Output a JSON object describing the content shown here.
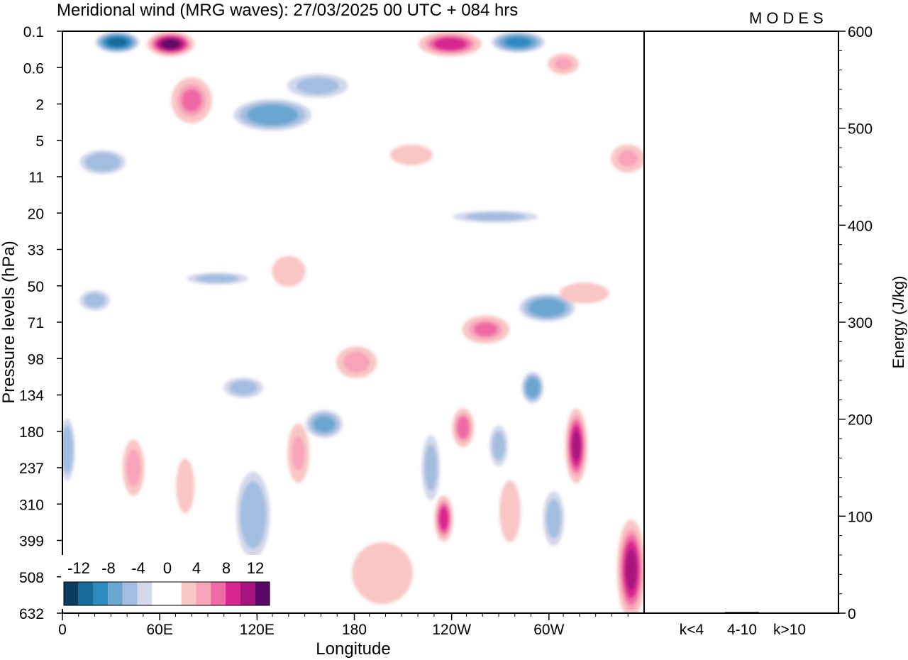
{
  "title": "Meridional wind (MRG waves):  27/03/2025  00 UTC  + 084 hrs",
  "logo": "MODES",
  "colors": {
    "neg": [
      "#0b3d5c",
      "#156c9a",
      "#2e8bbf",
      "#6aa6cf",
      "#a3bde0",
      "#d4d8ea"
    ],
    "pos": [
      "#f9c6c6",
      "#f7a3b8",
      "#ef6ba4",
      "#d8258f",
      "#a8137d",
      "#5a0865"
    ],
    "zero": "#ffffff"
  },
  "chart_data": [
    {
      "type": "heatmap",
      "panel": "main",
      "xlabel": "Longitude",
      "ylabel": "Pressure levels (hPa)",
      "x_ticks": [
        "0",
        "60E",
        "120E",
        "180",
        "120W",
        "60W"
      ],
      "x_range_deg": [
        0,
        360
      ],
      "y_ticks": [
        "0.1",
        "0.6",
        "2",
        "5",
        "11",
        "20",
        "33",
        "50",
        "71",
        "98",
        "134",
        "180",
        "237",
        "310",
        "399",
        "508",
        "632"
      ],
      "colorbar": {
        "labels": [
          "-12",
          "-8",
          "-4",
          "0",
          "4",
          "8",
          "12"
        ],
        "bins": [
          -14,
          -12,
          -10,
          -8,
          -6,
          -4,
          -2,
          2,
          4,
          6,
          8,
          10,
          12,
          14
        ]
      },
      "features": [
        {
          "lon": 34,
          "lev": 0.3,
          "v": -10,
          "w": 28,
          "h": 0.6
        },
        {
          "lon": 67,
          "lev": 0.35,
          "v": 14,
          "w": 30,
          "h": 0.7
        },
        {
          "lon": 80,
          "lev": 1.9,
          "v": 8,
          "w": 26,
          "h": 1.3
        },
        {
          "lon": 130,
          "lev": 2.3,
          "v": -7,
          "w": 50,
          "h": 0.9
        },
        {
          "lon": 240,
          "lev": 0.35,
          "v": 11,
          "w": 40,
          "h": 0.7
        },
        {
          "lon": 282,
          "lev": 0.3,
          "v": -8,
          "w": 34,
          "h": 0.6
        },
        {
          "lon": 310,
          "lev": 0.9,
          "v": 6,
          "w": 20,
          "h": 0.6
        },
        {
          "lon": 350,
          "lev": 3.5,
          "v": 6,
          "w": 22,
          "h": 0.8
        },
        {
          "lon": 25,
          "lev": 3.6,
          "v": -5,
          "w": 30,
          "h": 0.7
        },
        {
          "lon": 216,
          "lev": 3.4,
          "v": 4,
          "w": 28,
          "h": 0.6
        },
        {
          "lon": 140,
          "lev": 6.6,
          "v": 4,
          "w": 22,
          "h": 0.9
        },
        {
          "lon": 182,
          "lev": 9.1,
          "v": 7,
          "w": 26,
          "h": 0.9
        },
        {
          "lon": 262,
          "lev": 8.2,
          "v": 8,
          "w": 30,
          "h": 0.8
        },
        {
          "lon": 300,
          "lev": 7.6,
          "v": -7,
          "w": 36,
          "h": 0.8
        },
        {
          "lon": 323,
          "lev": 7.2,
          "v": 5,
          "w": 32,
          "h": 0.6
        },
        {
          "lon": 162,
          "lev": 10.8,
          "v": -6,
          "w": 24,
          "h": 0.8
        },
        {
          "lon": 248,
          "lev": 10.9,
          "v": 9,
          "w": 14,
          "h": 1.1
        },
        {
          "lon": 291,
          "lev": 9.8,
          "v": -7,
          "w": 14,
          "h": 0.9
        },
        {
          "lon": 318,
          "lev": 11.4,
          "v": 12,
          "w": 14,
          "h": 2.1
        },
        {
          "lon": 44,
          "lev": 12.0,
          "v": 7,
          "w": 14,
          "h": 1.6
        },
        {
          "lon": 146,
          "lev": 11.6,
          "v": 6,
          "w": 14,
          "h": 1.7
        },
        {
          "lon": 236,
          "lev": 13.4,
          "v": 11,
          "w": 12,
          "h": 1.3
        },
        {
          "lon": 352,
          "lev": 14.8,
          "v": 12,
          "w": 18,
          "h": 2.8
        },
        {
          "lon": 118,
          "lev": 13.3,
          "v": -5,
          "w": 22,
          "h": 2.5
        },
        {
          "lon": 3,
          "lev": 11.5,
          "v": -5,
          "w": 10,
          "h": 1.8
        },
        {
          "lon": 198,
          "lev": 14.9,
          "v": 4,
          "w": 40,
          "h": 1.8
        },
        {
          "lon": 277,
          "lev": 13.2,
          "v": 4,
          "w": 14,
          "h": 1.8
        },
        {
          "lon": 76,
          "lev": 12.5,
          "v": 4,
          "w": 12,
          "h": 1.6
        },
        {
          "lon": 228,
          "lev": 12.0,
          "v": -4,
          "w": 12,
          "h": 1.9
        },
        {
          "lon": 270,
          "lev": 11.4,
          "v": -4,
          "w": 12,
          "h": 1.2
        },
        {
          "lon": 304,
          "lev": 13.4,
          "v": -4,
          "w": 14,
          "h": 1.6
        },
        {
          "lon": 112,
          "lev": 9.8,
          "v": -4,
          "w": 26,
          "h": 0.6
        },
        {
          "lon": 20,
          "lev": 7.4,
          "v": -4,
          "w": 20,
          "h": 0.6
        },
        {
          "lon": 158,
          "lev": 1.5,
          "v": -4,
          "w": 40,
          "h": 0.7
        },
        {
          "lon": 268,
          "lev": 5.1,
          "v": -4,
          "w": 56,
          "h": 0.35
        },
        {
          "lon": 96,
          "lev": 6.8,
          "v": -4,
          "w": 40,
          "h": 0.35
        }
      ]
    },
    {
      "type": "bar",
      "panel": "energy",
      "ylabel": "Energy (J/kg)",
      "categories": [
        "k<4",
        "4-10",
        "k>10"
      ],
      "values": [
        0.4,
        1.2,
        0.2
      ],
      "ylim": [
        0,
        600
      ],
      "y_ticks": [
        "0",
        "100",
        "200",
        "300",
        "400",
        "500",
        "600"
      ]
    }
  ]
}
